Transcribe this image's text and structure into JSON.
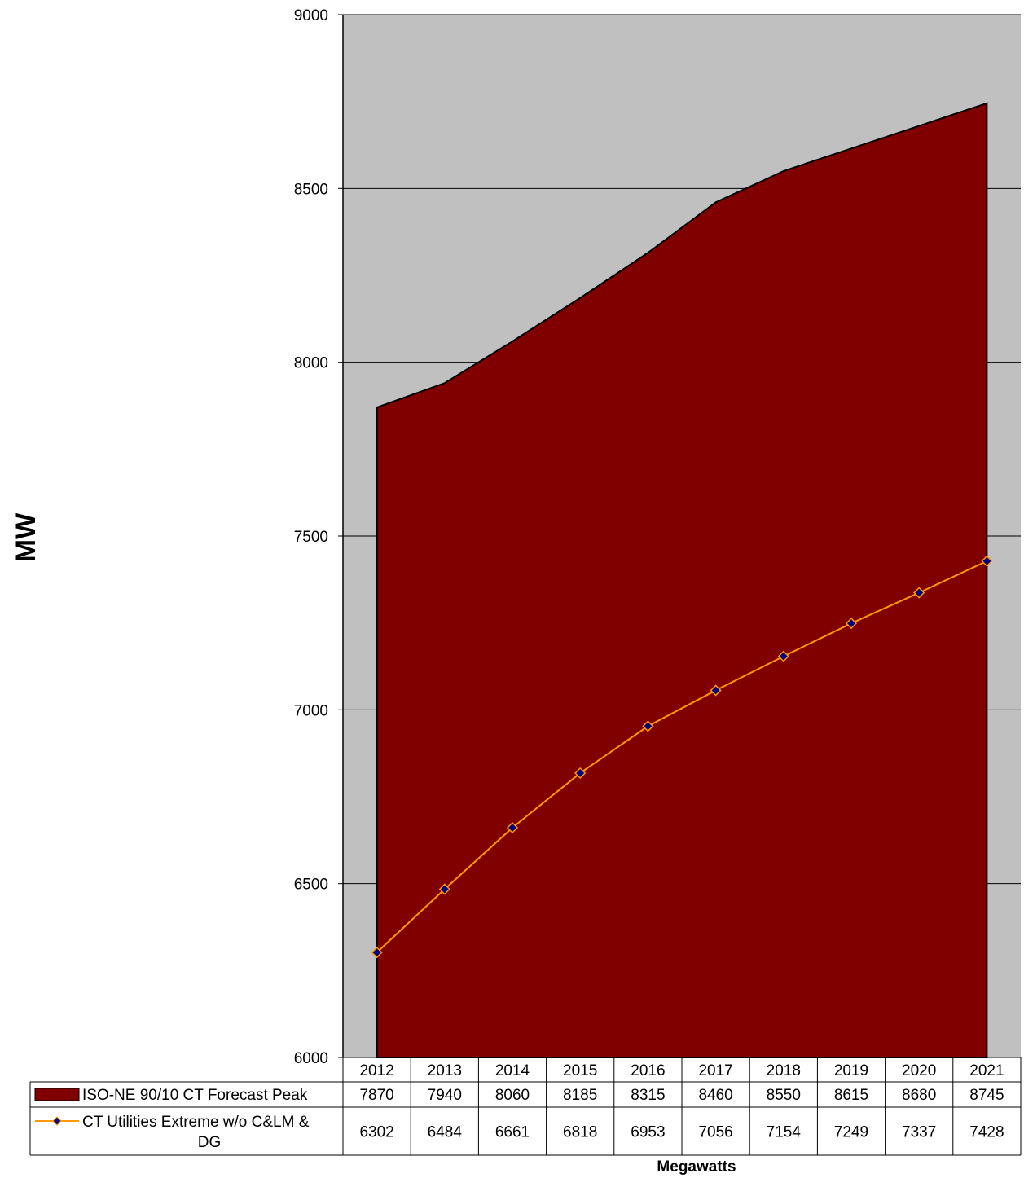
{
  "chart_data": {
    "type": "area",
    "title": "",
    "ylabel": "MW",
    "xlabel": "Megawatts",
    "ylim": [
      6000,
      9000
    ],
    "yticks": [
      6000,
      6500,
      7000,
      7500,
      8000,
      8500,
      9000
    ],
    "grid": "horizontal",
    "legend": "data-table",
    "categories": [
      "2012",
      "2013",
      "2014",
      "2015",
      "2016",
      "2017",
      "2018",
      "2019",
      "2020",
      "2021"
    ],
    "series": [
      {
        "name": "ISO-NE 90/10 CT Forecast Peak",
        "type": "area",
        "color": "#800000",
        "values": [
          7870,
          7940,
          8060,
          8185,
          8315,
          8460,
          8550,
          8615,
          8680,
          8745
        ]
      },
      {
        "name": "CT Utilities Extreme w/o C&LM & DG",
        "name_line1": "CT Utilities Extreme w/o C&LM &",
        "name_line2": "DG",
        "type": "line",
        "color": "#FF9900",
        "marker_color": "#000080",
        "values": [
          6302,
          6484,
          6661,
          6818,
          6953,
          7056,
          7154,
          7249,
          7337,
          7428
        ]
      }
    ],
    "plot_background": "#C0C0C0"
  }
}
